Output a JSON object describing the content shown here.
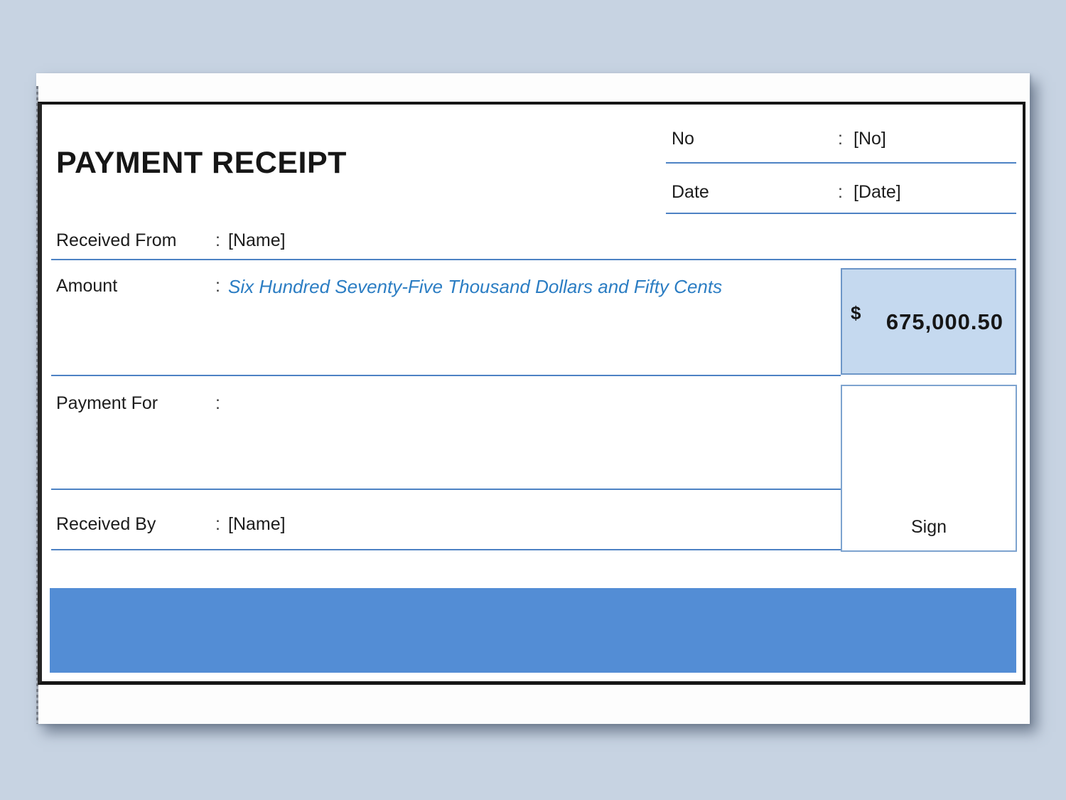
{
  "receipt": {
    "title": "PAYMENT RECEIPT",
    "colon": ":",
    "meta": [
      {
        "label": "No",
        "value": "[No]"
      },
      {
        "label": "Date",
        "value": "[Date]"
      }
    ],
    "received_from": {
      "label": "Received From",
      "value": "[Name]"
    },
    "amount": {
      "label": "Amount",
      "in_words": "Six Hundred Seventy-Five Thousand Dollars and Fifty Cents",
      "currency": "$",
      "value": "675,000.50"
    },
    "payment_for": {
      "label": "Payment For",
      "value": ""
    },
    "received_by": {
      "label": "Received By",
      "value": "[Name]"
    },
    "sign": {
      "label": "Sign"
    },
    "colors": {
      "background": "#c7d3e2",
      "footer_bar_blue": "#538dd5",
      "amount_box_fill": "#c5d9ef",
      "line_blue": "#4d82c4",
      "amount_words_blue": "#2b7dc3"
    }
  }
}
